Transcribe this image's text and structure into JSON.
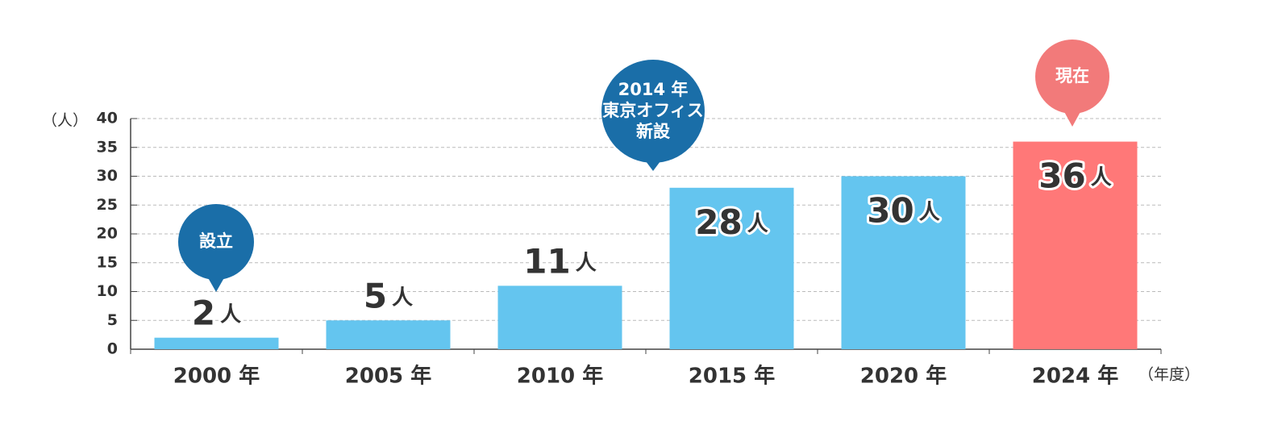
{
  "chart_data": {
    "type": "bar",
    "y_axis_label": "（人）",
    "x_axis_label": "（年度）",
    "categories": [
      "2000 年",
      "2005 年",
      "2010 年",
      "2015 年",
      "2020 年",
      "2024 年"
    ],
    "values": [
      2,
      5,
      11,
      28,
      30,
      36
    ],
    "value_labels": [
      "2人",
      "5人",
      "11人",
      "28人",
      "30人",
      "36人"
    ],
    "colors": [
      "#64c5ef",
      "#64c5ef",
      "#64c5ef",
      "#64c5ef",
      "#64c5ef",
      "#ff7878"
    ],
    "ylim": [
      0,
      40
    ],
    "yticks": [
      0,
      5,
      10,
      15,
      20,
      25,
      30,
      35,
      40
    ],
    "grid": true,
    "annotations": [
      {
        "lines": [
          "設立"
        ],
        "color": "#1a6ea8"
      },
      {
        "lines": [
          "2014 年",
          "東京オフィス",
          "新設"
        ],
        "color": "#1a6ea8"
      },
      {
        "lines": [
          "現在"
        ],
        "color": "#f27a7a"
      }
    ]
  }
}
